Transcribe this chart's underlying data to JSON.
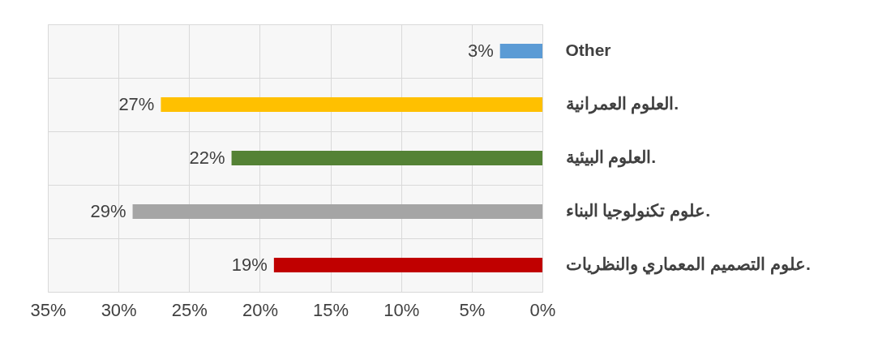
{
  "chart_data": {
    "type": "bar",
    "orientation": "horizontal",
    "categories": [
      "Other",
      "العلوم العمرانية.",
      "العلوم البيئية.",
      "علوم تكنولوجيا البناء.",
      "علوم التصميم المعماري والنظريات."
    ],
    "values": [
      3,
      27,
      22,
      29,
      19
    ],
    "colors": [
      "#5b9bd5",
      "#ffc000",
      "#548235",
      "#a5a5a5",
      "#c00000"
    ],
    "value_labels": [
      "3%",
      "27%",
      "22%",
      "29%",
      "19%"
    ],
    "xlim": [
      35,
      0
    ],
    "xticks": [
      {
        "value": 35,
        "label": "35%"
      },
      {
        "value": 30,
        "label": "30%"
      },
      {
        "value": 25,
        "label": "25%"
      },
      {
        "value": 20,
        "label": "20%"
      },
      {
        "value": 15,
        "label": "15%"
      },
      {
        "value": 10,
        "label": "10%"
      },
      {
        "value": 5,
        "label": "5%"
      },
      {
        "value": 0,
        "label": "0%"
      }
    ],
    "grid": true
  }
}
